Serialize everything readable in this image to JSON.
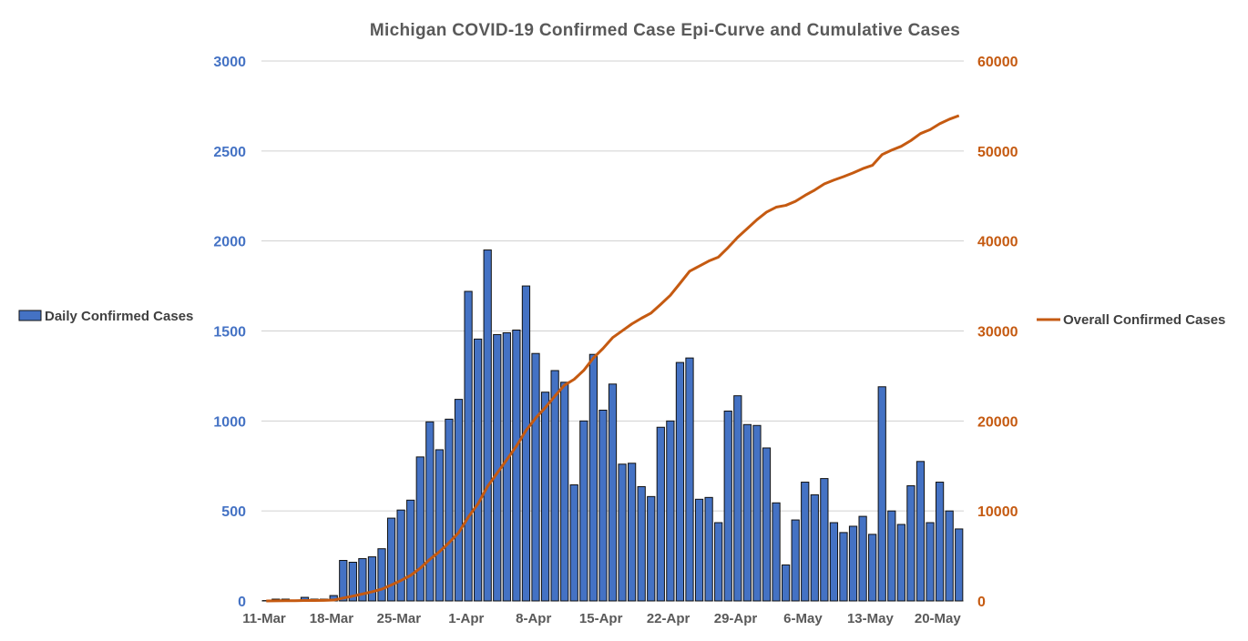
{
  "chart_data": {
    "type": "bar",
    "title": "Michigan COVID-19 Confirmed Case Epi-Curve and Cumulative Cases",
    "x_start": "11-Mar",
    "x_end": "23-May",
    "x_tick_labels": [
      "11-Mar",
      "18-Mar",
      "25-Mar",
      "1-Apr",
      "8-Apr",
      "15-Apr",
      "22-Apr",
      "29-Apr",
      "6-May",
      "13-May",
      "20-May"
    ],
    "y_left": {
      "lim": [
        0,
        3000
      ],
      "ticks": [
        "0",
        "500",
        "1000",
        "1500",
        "2000",
        "2500",
        "3000"
      ]
    },
    "y_right": {
      "lim": [
        0,
        60000
      ],
      "ticks": [
        "0",
        "10000",
        "20000",
        "30000",
        "40000",
        "50000",
        "60000"
      ]
    },
    "grid": true,
    "legend_left": "left",
    "legend_right": "right",
    "colors": {
      "bar": "#4472c4",
      "bar_edge": "#111111",
      "line": "#c55a11",
      "left_axis": "#4472c4",
      "right_axis": "#c55a11",
      "grid": "#d0d0d0"
    },
    "series": [
      {
        "name": "Daily Confirmed Cases",
        "type": "bar",
        "axis": "left",
        "values": [
          2,
          10,
          10,
          5,
          20,
          10,
          10,
          30,
          225,
          215,
          235,
          245,
          290,
          460,
          505,
          560,
          800,
          995,
          840,
          1010,
          1120,
          1720,
          1455,
          1950,
          1480,
          1490,
          1505,
          1750,
          1375,
          1160,
          1280,
          1215,
          645,
          1000,
          1370,
          1060,
          1205,
          760,
          765,
          635,
          580,
          965,
          1000,
          1325,
          1350,
          565,
          575,
          435,
          1055,
          1140,
          980,
          975,
          850,
          545,
          200,
          450,
          660,
          590,
          680,
          435,
          380,
          415,
          470,
          370,
          1190,
          500,
          425,
          640,
          775,
          435,
          660,
          500,
          400
        ]
      },
      {
        "name": "Overall Confirmed Cases",
        "type": "line",
        "axis": "right",
        "values": [
          2,
          12,
          22,
          27,
          47,
          57,
          67,
          97,
          322,
          537,
          772,
          1017,
          1307,
          1767,
          2272,
          2832,
          3632,
          4627,
          5467,
          6477,
          7597,
          9317,
          10772,
          12722,
          14202,
          15692,
          17197,
          18947,
          20322,
          21482,
          22762,
          23977,
          24622,
          25622,
          26992,
          28052,
          29257,
          30017,
          30782,
          31417,
          31997,
          32962,
          33962,
          35287,
          36637,
          37202,
          37777,
          38212,
          39267,
          40407,
          41387,
          42362,
          43212,
          43757,
          43957,
          44407,
          45067,
          45657,
          46337,
          46772,
          47152,
          47567,
          48037,
          48407,
          49597,
          50097,
          50522,
          51162,
          51937,
          52372,
          53032,
          53532,
          53932
        ]
      }
    ]
  }
}
